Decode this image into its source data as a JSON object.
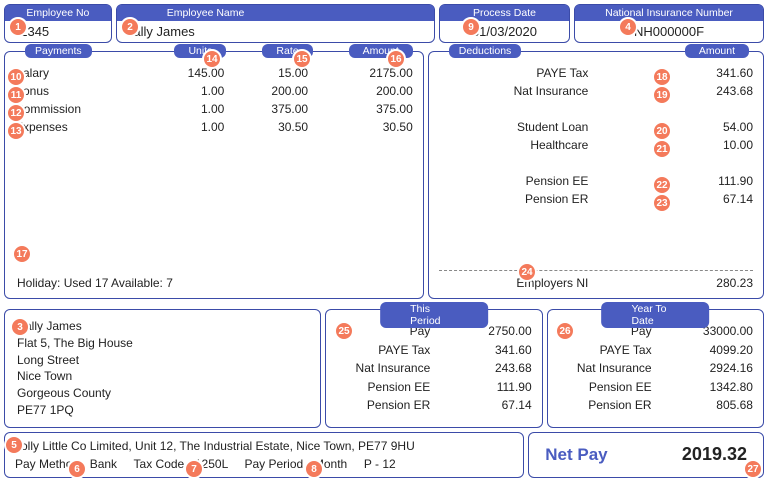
{
  "header": {
    "emp_no_label": "Employee No",
    "emp_no": "12345",
    "emp_name_label": "Employee Name",
    "emp_name": "Sally James",
    "process_date_label": "Process Date",
    "process_date": "31/03/2020",
    "nino_label": "National Insurance Number",
    "nino": "NH000000F"
  },
  "payments": {
    "title": "Payments",
    "units_label": "Units",
    "rate_label": "Rate",
    "amount_label": "Amount",
    "rows": [
      {
        "name": "Salary",
        "units": "145.00",
        "rate": "15.00",
        "amount": "2175.00"
      },
      {
        "name": "Bonus",
        "units": "1.00",
        "rate": "200.00",
        "amount": "200.00"
      },
      {
        "name": "Commission",
        "units": "1.00",
        "rate": "375.00",
        "amount": "375.00"
      },
      {
        "name": "Expenses",
        "units": "1.00",
        "rate": "30.50",
        "amount": "30.50"
      }
    ],
    "holiday": "Holiday: Used 17 Available: 7"
  },
  "deductions": {
    "title": "Deductions",
    "amount_label": "Amount",
    "rows": [
      {
        "name": "PAYE Tax",
        "amount": "341.60"
      },
      {
        "name": "Nat Insurance",
        "amount": "243.68"
      },
      {
        "name": "",
        "amount": ""
      },
      {
        "name": "Student Loan",
        "amount": "54.00"
      },
      {
        "name": "Healthcare",
        "amount": "10.00"
      },
      {
        "name": "",
        "amount": ""
      },
      {
        "name": "Pension EE",
        "amount": "111.90"
      },
      {
        "name": "Pension ER",
        "amount": "67.14"
      }
    ],
    "footer_name": "Employers NI",
    "footer_amount": "280.23"
  },
  "address": {
    "line1": "Sally James",
    "line2": "Flat 5, The Big House",
    "line3": "Long Street",
    "line4": "Nice Town",
    "line5": "Gorgeous County",
    "line6": "PE77 1PQ"
  },
  "this_period": {
    "title": "This Period",
    "rows": [
      {
        "name": "Pay",
        "amount": "2750.00"
      },
      {
        "name": "PAYE Tax",
        "amount": "341.60"
      },
      {
        "name": "Nat Insurance",
        "amount": "243.68"
      },
      {
        "name": "Pension EE",
        "amount": "111.90"
      },
      {
        "name": "Pension ER",
        "amount": "67.14"
      }
    ]
  },
  "ytd": {
    "title": "Year To Date",
    "rows": [
      {
        "name": "Pay",
        "amount": "33000.00"
      },
      {
        "name": "PAYE Tax",
        "amount": "4099.20"
      },
      {
        "name": "Nat Insurance",
        "amount": "2924.16"
      },
      {
        "name": "Pension EE",
        "amount": "1342.80"
      },
      {
        "name": "Pension ER",
        "amount": "805.68"
      }
    ]
  },
  "footer": {
    "company": "Jolly Little Co Limited, Unit 12, The Industrial Estate, Nice Town, PE77 9HU",
    "method_label": "Pay Method - ",
    "method": "Bank",
    "taxcode_label": "Tax Code - ",
    "taxcode": "1250L",
    "payperiod_label": "Pay Period - ",
    "payperiod": "Month",
    "p_label": "P - ",
    "p": "12",
    "netpay_label": "Net Pay",
    "netpay": "2019.32"
  },
  "badges": {
    "b1": "1",
    "b2": "2",
    "b3": "3",
    "b4": "4",
    "b5": "5",
    "b6": "6",
    "b7": "7",
    "b8": "8",
    "b9": "9",
    "b10": "10",
    "b11": "11",
    "b12": "12",
    "b13": "13",
    "b14": "14",
    "b15": "15",
    "b16": "16",
    "b17": "17",
    "b18": "18",
    "b19": "19",
    "b20": "20",
    "b21": "21",
    "b22": "22",
    "b23": "23",
    "b24": "24",
    "b25": "25",
    "b26": "26",
    "b27": "27"
  },
  "colors": {
    "brand": "#4a5cc0",
    "badge": "#f47a5b"
  }
}
